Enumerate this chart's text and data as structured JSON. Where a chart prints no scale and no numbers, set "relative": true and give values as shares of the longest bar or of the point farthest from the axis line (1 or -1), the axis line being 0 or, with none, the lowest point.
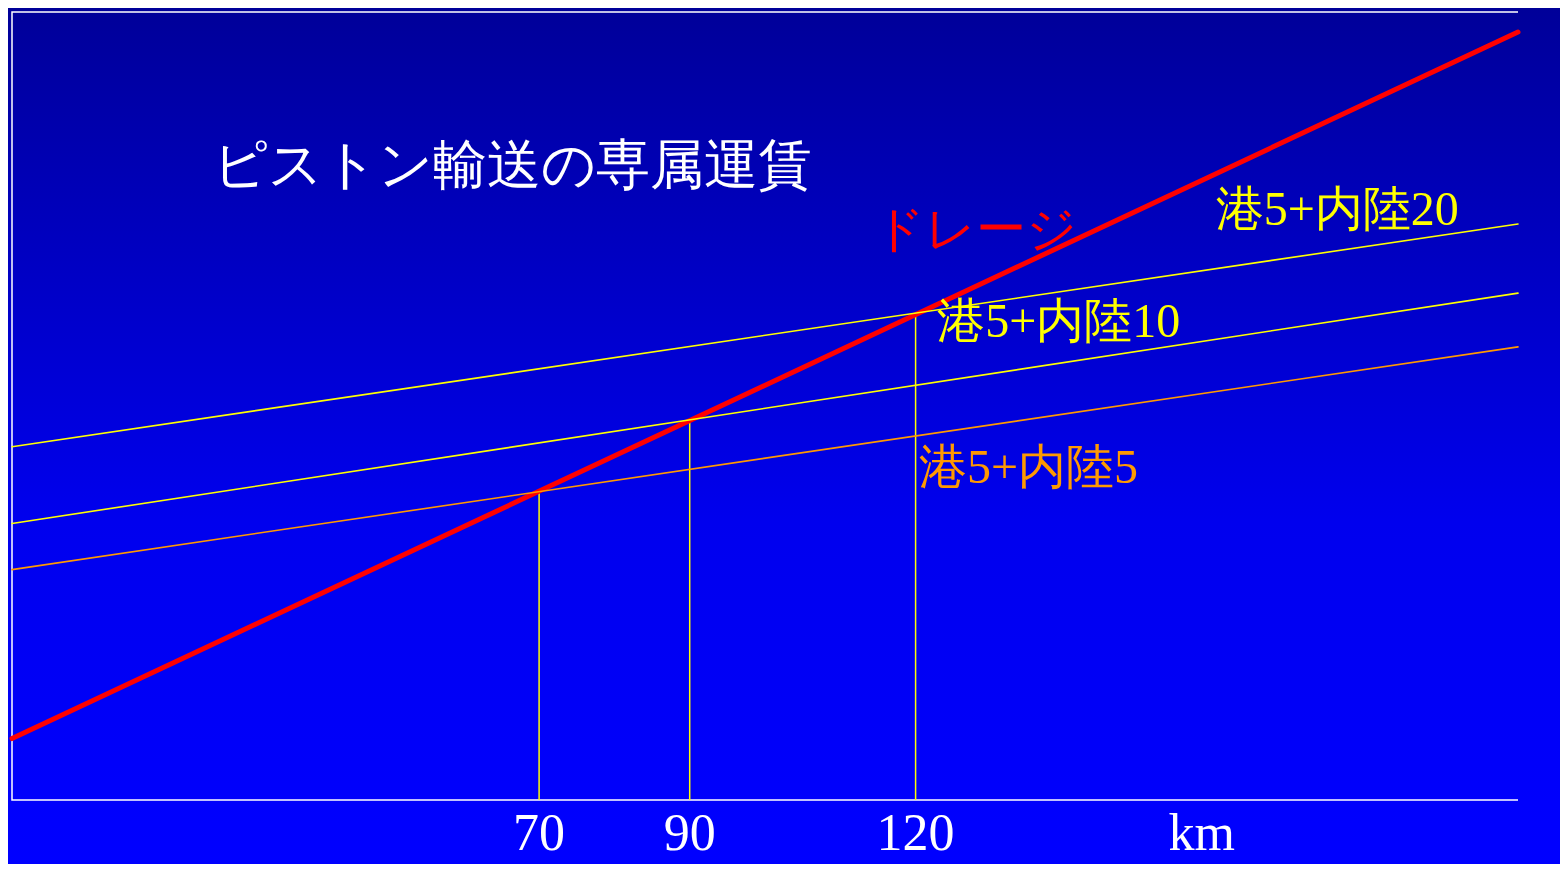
{
  "chart_data": {
    "type": "line",
    "title": "ピストン輸送の専属運賃",
    "xlabel": "km",
    "relative": true,
    "x": [
      0,
      200
    ],
    "xlim": [
      0,
      200
    ],
    "xticks": [
      70,
      90,
      120
    ],
    "series": [
      {
        "name": "ドレージ",
        "color": "#ff0000",
        "values": [
          0.08,
          1
        ]
      },
      {
        "name": "港5+内陸20",
        "color": "#ffff00",
        "values": [
          0.46,
          0.75
        ]
      },
      {
        "name": "港5+内陸10",
        "color": "#ffff00",
        "values": [
          0.36,
          0.66
        ]
      },
      {
        "name": "港5+内陸5",
        "color": "#ff9900",
        "values": [
          0.3,
          0.59
        ]
      }
    ],
    "ref_lines": [
      {
        "axis": "x",
        "value": 70,
        "color": "#ffff00"
      },
      {
        "axis": "x",
        "value": 90,
        "color": "#ffff00"
      },
      {
        "axis": "x",
        "value": 120,
        "color": "#ffff00"
      }
    ]
  }
}
